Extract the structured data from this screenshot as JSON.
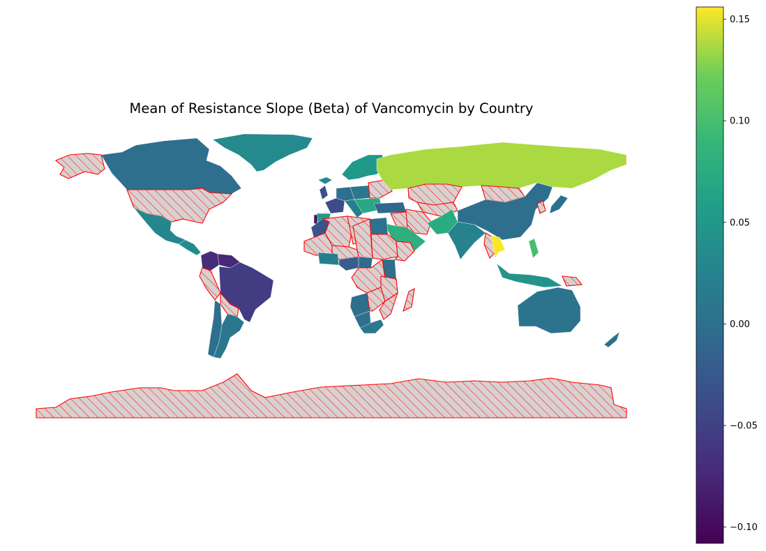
{
  "figure": {
    "title": "Mean of Resistance Slope (Beta) of Vancomycin by Country"
  },
  "colorbar": {
    "colormap": "viridis",
    "vmin": -0.108,
    "vmax": 0.156,
    "ticks": [
      {
        "value": 0.15,
        "label": "0.15"
      },
      {
        "value": 0.1,
        "label": "0.10"
      },
      {
        "value": 0.05,
        "label": "0.05"
      },
      {
        "value": 0.0,
        "label": "0.00"
      },
      {
        "value": -0.05,
        "label": "−0.05"
      },
      {
        "value": -0.1,
        "label": "−0.10"
      }
    ]
  },
  "legend_style": {
    "missing_fill": "#d9d0d0",
    "missing_edge": "#ff0000",
    "missing_hatch": "diagonal"
  },
  "regions": [
    {
      "name": "Greenland",
      "value": 0.033
    },
    {
      "name": "Canada",
      "value": 0.0
    },
    {
      "name": "United States",
      "value": null
    },
    {
      "name": "Alaska",
      "value": null
    },
    {
      "name": "Mexico",
      "value": 0.03
    },
    {
      "name": "Central America",
      "value": 0.035
    },
    {
      "name": "Colombia",
      "value": -0.07
    },
    {
      "name": "Venezuela",
      "value": -0.075
    },
    {
      "name": "Brazil",
      "value": -0.055
    },
    {
      "name": "Peru",
      "value": null
    },
    {
      "name": "Bolivia",
      "value": null
    },
    {
      "name": "Argentina",
      "value": 0.01
    },
    {
      "name": "Chile",
      "value": 0.0
    },
    {
      "name": "Iceland",
      "value": 0.03
    },
    {
      "name": "Scandinavia",
      "value": 0.05
    },
    {
      "name": "United Kingdom",
      "value": -0.035
    },
    {
      "name": "France",
      "value": -0.04
    },
    {
      "name": "Spain",
      "value": 0.055
    },
    {
      "name": "Portugal",
      "value": -0.09
    },
    {
      "name": "Germany",
      "value": 0.0
    },
    {
      "name": "Italy",
      "value": 0.02
    },
    {
      "name": "Poland",
      "value": 0.01
    },
    {
      "name": "Ukraine",
      "value": null
    },
    {
      "name": "Balkans",
      "value": 0.07
    },
    {
      "name": "Turkey",
      "value": -0.01
    },
    {
      "name": "Russia",
      "value": 0.137
    },
    {
      "name": "Kazakhstan",
      "value": null
    },
    {
      "name": "Central Asia",
      "value": null
    },
    {
      "name": "Mongolia",
      "value": null
    },
    {
      "name": "Iran",
      "value": null
    },
    {
      "name": "Iraq",
      "value": null
    },
    {
      "name": "Saudi Arabia",
      "value": 0.08
    },
    {
      "name": "Pakistan",
      "value": 0.075
    },
    {
      "name": "India",
      "value": 0.025
    },
    {
      "name": "China",
      "value": 0.0
    },
    {
      "name": "Korea",
      "value": null
    },
    {
      "name": "Japan",
      "value": 0.0
    },
    {
      "name": "Myanmar",
      "value": null
    },
    {
      "name": "Thailand",
      "value": 0.155
    },
    {
      "name": "Philippines",
      "value": 0.1
    },
    {
      "name": "Indonesia",
      "value": 0.045
    },
    {
      "name": "Papua New Guinea",
      "value": null
    },
    {
      "name": "Australia",
      "value": 0.005
    },
    {
      "name": "New Zealand",
      "value": 0.0
    },
    {
      "name": "Morocco",
      "value": -0.03
    },
    {
      "name": "Algeria",
      "value": null
    },
    {
      "name": "Libya",
      "value": null
    },
    {
      "name": "Egypt",
      "value": 0.005
    },
    {
      "name": "Mali",
      "value": null
    },
    {
      "name": "Niger",
      "value": null
    },
    {
      "name": "Chad",
      "value": null
    },
    {
      "name": "Sudan",
      "value": null
    },
    {
      "name": "Ethiopia",
      "value": null
    },
    {
      "name": "Nigeria",
      "value": -0.02
    },
    {
      "name": "Ghana",
      "value": 0.02
    },
    {
      "name": "Cameroon",
      "value": -0.005
    },
    {
      "name": "Kenya",
      "value": 0.0
    },
    {
      "name": "Central Africa",
      "value": null
    },
    {
      "name": "Angola",
      "value": 0.0
    },
    {
      "name": "Zambia",
      "value": null
    },
    {
      "name": "Tanzania",
      "value": null
    },
    {
      "name": "Mozambique",
      "value": null
    },
    {
      "name": "Namibia",
      "value": 0.0
    },
    {
      "name": "South Africa",
      "value": 0.01
    },
    {
      "name": "Madagascar",
      "value": null
    },
    {
      "name": "Antarctica",
      "value": null
    }
  ]
}
